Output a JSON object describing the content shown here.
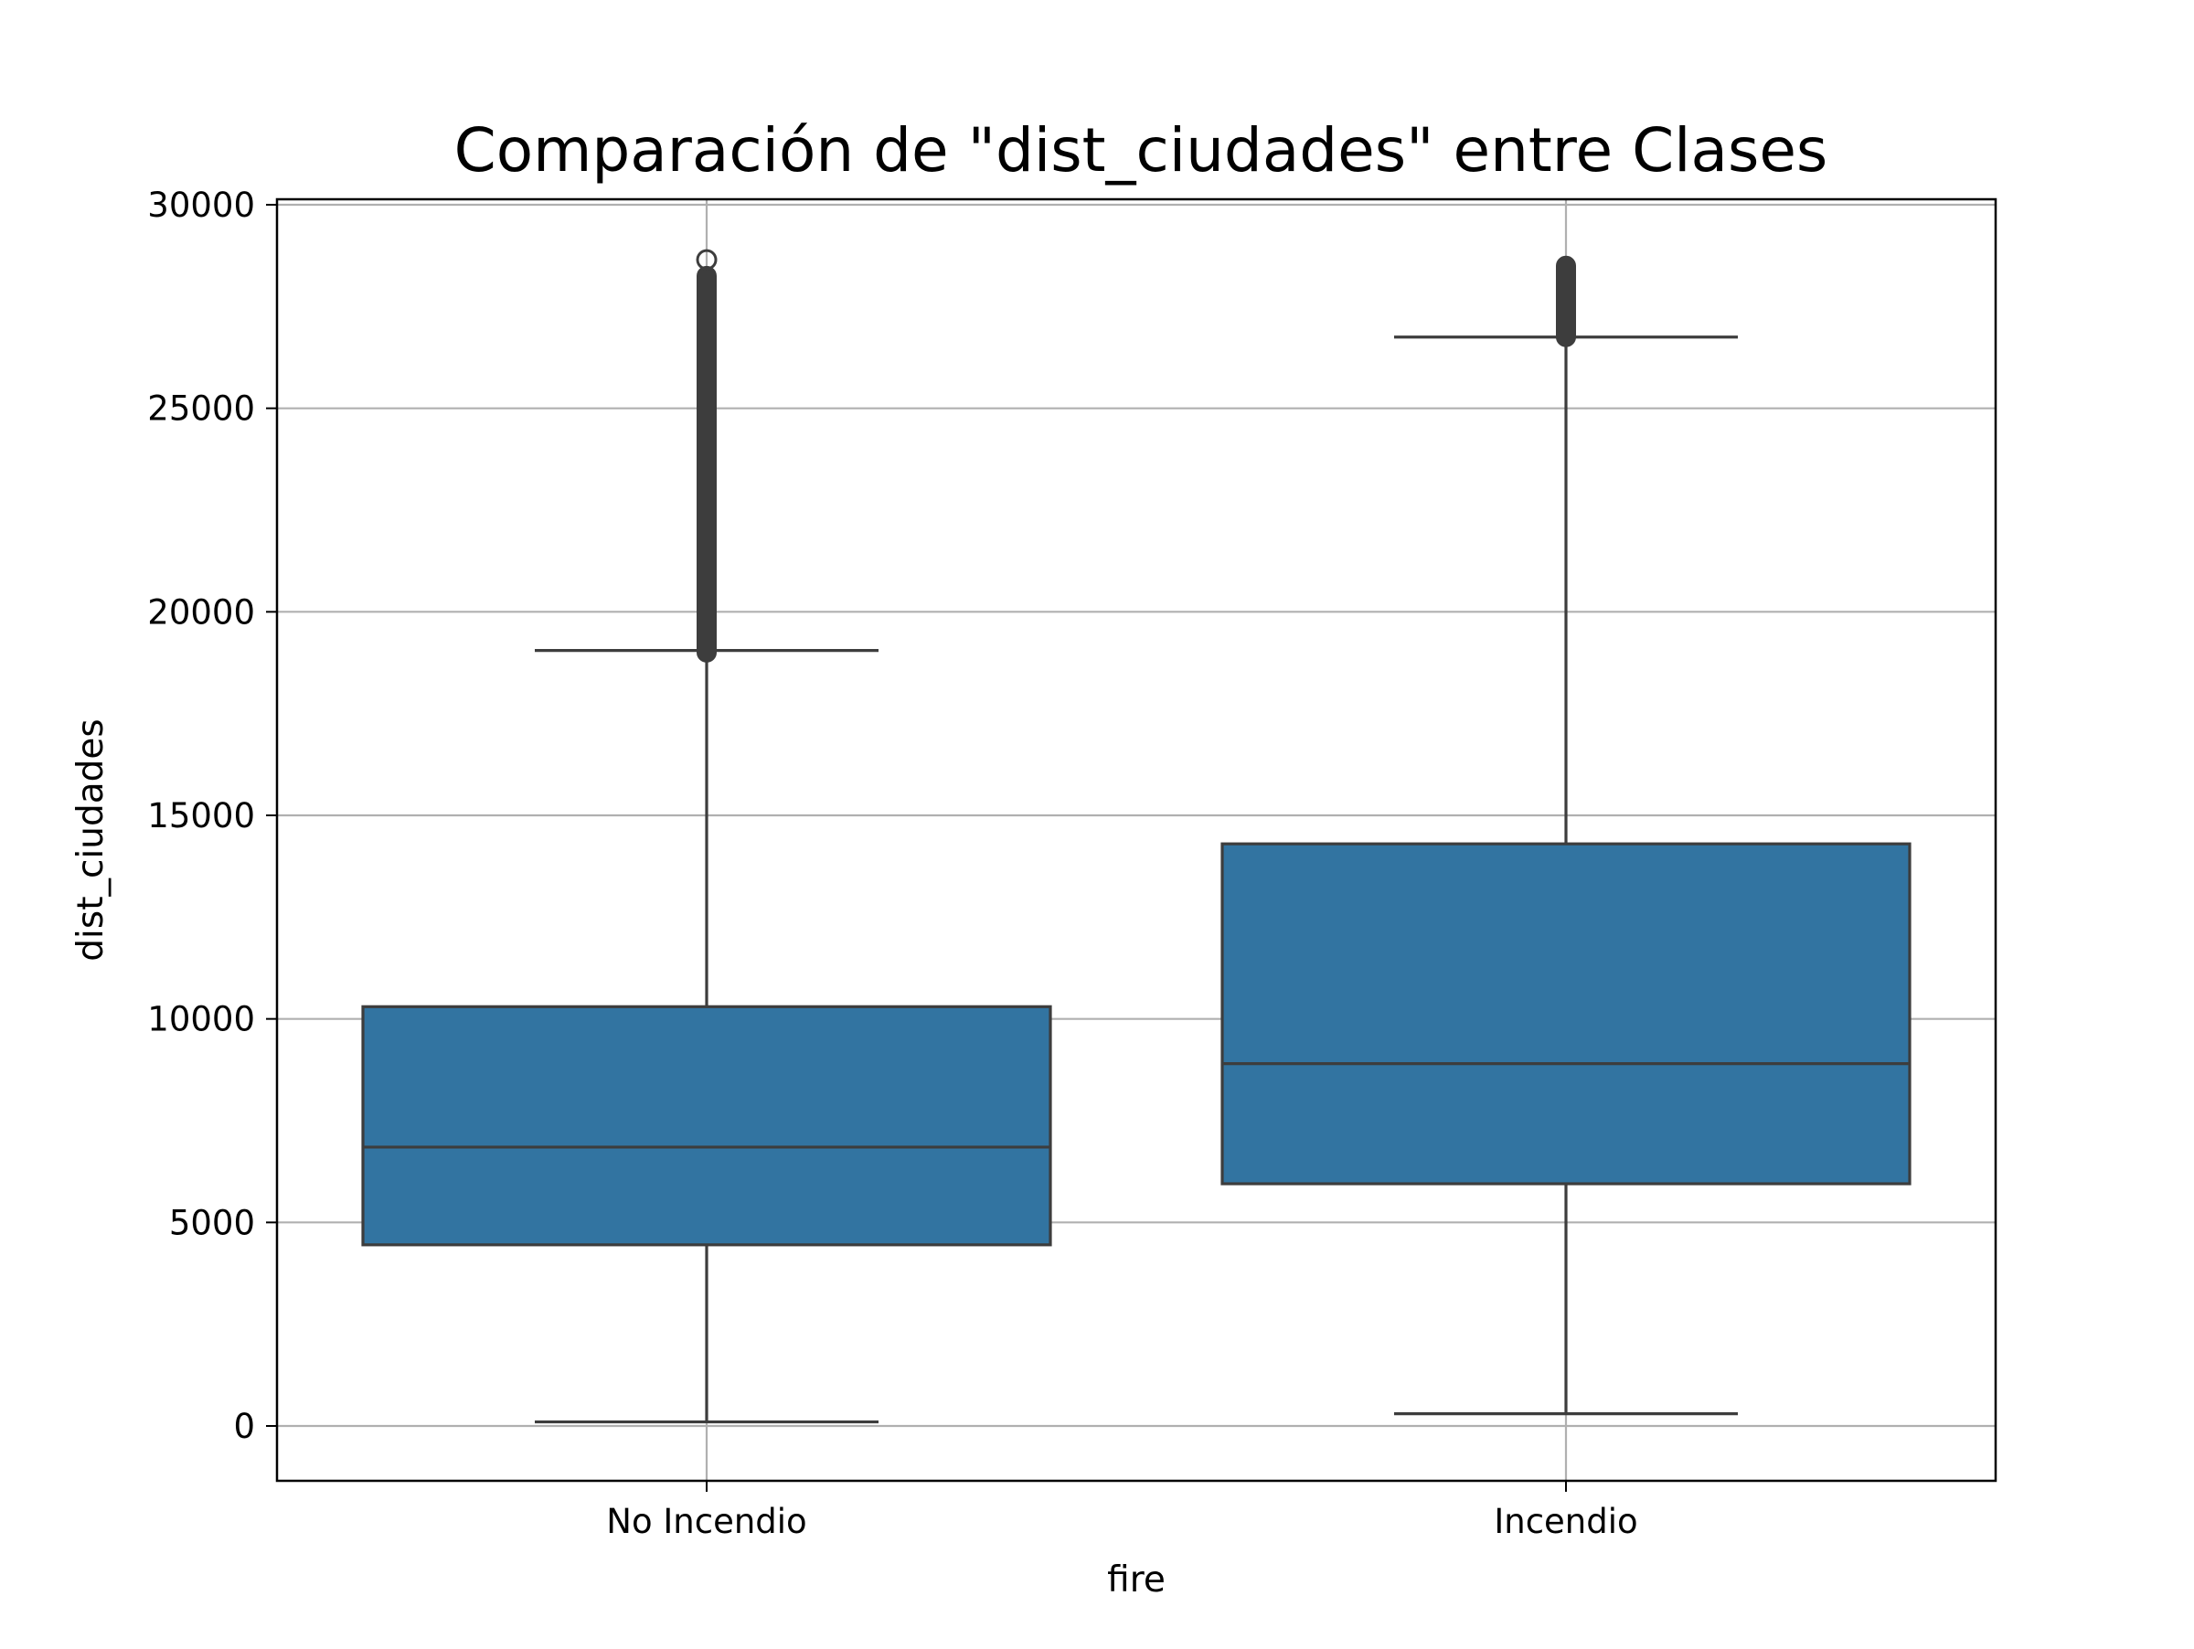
{
  "chart_data": {
    "type": "box",
    "title": "Comparación de \"dist_ciudades\" entre Clases",
    "xlabel": "fire",
    "ylabel": "dist_ciudades",
    "categories": [
      "No Incendio",
      "Incendio"
    ],
    "ylim": [
      -1300,
      30100
    ],
    "yticks": [
      0,
      5000,
      10000,
      15000,
      20000,
      25000,
      30000
    ],
    "ytick_labels": [
      "0",
      "5000",
      "10000",
      "15000",
      "20000",
      "25000",
      "30000"
    ],
    "grid": true,
    "box_color": "#3274a1",
    "line_color": "#3d3d3d",
    "grid_color": "#b0b0b0",
    "boxes": [
      {
        "category": "No Incendio",
        "whisker_low": 100,
        "q1": 4450,
        "median": 6850,
        "q3": 10300,
        "whisker_high": 19050,
        "outlier_range": [
          19000,
          28250
        ],
        "outliers_extra": [
          28650
        ]
      },
      {
        "category": "Incendio",
        "whisker_low": 300,
        "q1": 5950,
        "median": 8900,
        "q3": 14300,
        "whisker_high": 26750,
        "outlier_range": [
          26750,
          28500
        ],
        "outliers_extra": []
      }
    ]
  }
}
